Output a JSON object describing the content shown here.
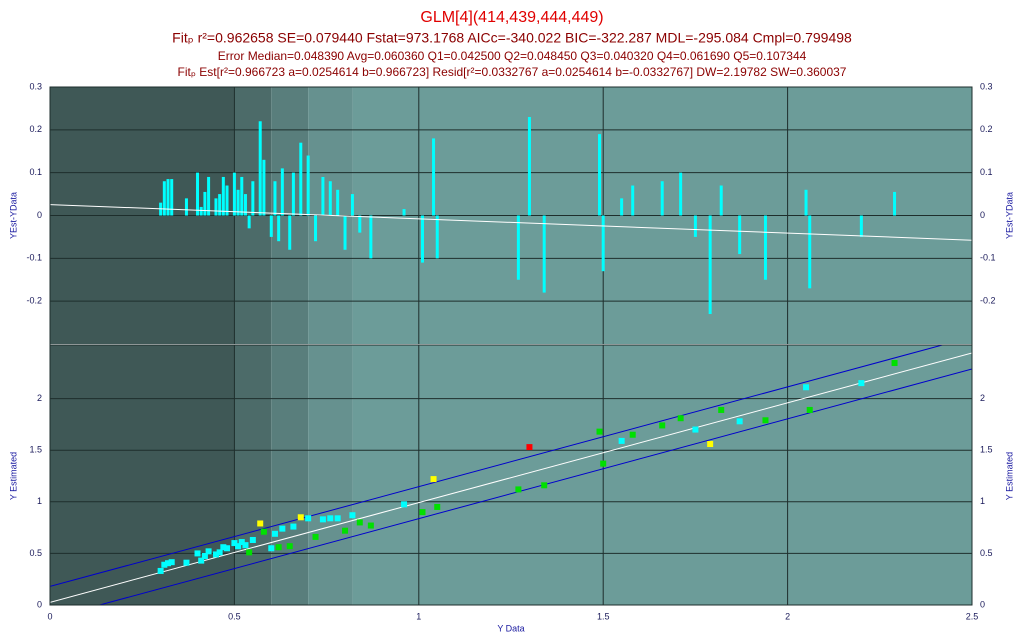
{
  "chart_data": [
    {
      "type": "bar",
      "title": "GLM[4](414,439,444,449)",
      "subtitle": [
        "Fitₚ r²=0.962658 SE=0.079440 Fstat=973.1768 AICc=-340.022 BIC=-322.287 MDL=-295.084 Cmpl=0.799498",
        "Error Median=0.048390 Avg=0.060360 Q1=0.042500 Q2=0.048450 Q3=0.040320 Q4=0.061690 Q5=0.107344",
        "Fitₚ Est[r²=0.966723 a=0.0254614 b=0.966723] Resid[r²=0.0332767 a=0.0254614 b=-0.0332767] DW=2.19782 SW=0.360037"
      ],
      "ylabel": "YEst-YData",
      "x": [
        0.3,
        0.31,
        0.32,
        0.33,
        0.37,
        0.4,
        0.41,
        0.42,
        0.43,
        0.45,
        0.46,
        0.47,
        0.48,
        0.5,
        0.51,
        0.52,
        0.53,
        0.54,
        0.55,
        0.57,
        0.58,
        0.6,
        0.61,
        0.62,
        0.63,
        0.65,
        0.66,
        0.68,
        0.7,
        0.72,
        0.74,
        0.76,
        0.78,
        0.8,
        0.82,
        0.84,
        0.87,
        0.96,
        1.01,
        1.04,
        1.05,
        1.27,
        1.3,
        1.34,
        1.49,
        1.5,
        1.55,
        1.58,
        1.66,
        1.71,
        1.75,
        1.79,
        1.82,
        1.87,
        1.94,
        2.05,
        2.06,
        2.2,
        2.29
      ],
      "values": [
        0.03,
        0.08,
        0.085,
        0.085,
        0.04,
        0.1,
        0.02,
        0.055,
        0.09,
        0.04,
        0.05,
        0.09,
        0.07,
        0.1,
        0.06,
        0.09,
        0.05,
        -0.03,
        0.08,
        0.22,
        0.13,
        -0.05,
        0.08,
        -0.06,
        0.11,
        -0.08,
        0.1,
        0.17,
        0.14,
        -0.06,
        0.09,
        0.08,
        0.06,
        -0.08,
        0.05,
        -0.04,
        -0.1,
        0.015,
        -0.11,
        0.18,
        -0.1,
        -0.15,
        0.23,
        -0.18,
        0.19,
        -0.13,
        0.04,
        0.07,
        0.08,
        0.1,
        -0.05,
        -0.23,
        0.07,
        -0.09,
        -0.15,
        0.06,
        -0.17,
        -0.05,
        0.055
      ],
      "color": "#00ffff",
      "xlim": [
        0,
        2.5
      ],
      "ylim": [
        -0.3,
        0.3
      ],
      "yticks": [
        -0.2,
        -0.1,
        0,
        0.1,
        0.2,
        0.3
      ],
      "fit_line": {
        "x": [
          0,
          2.5
        ],
        "y": [
          0.0255,
          -0.0577
        ]
      },
      "line_color": "#ffffff",
      "bands": [
        0,
        0.5,
        0.6,
        0.7,
        0.82,
        2.5
      ],
      "band_colors": [
        "#3f5856",
        "#4c6b69",
        "#597e7c",
        "#66918f",
        "#6c9c99"
      ],
      "grid": true
    },
    {
      "type": "scatter",
      "xlabel": "Y Data",
      "ylabel": "Y Estimated",
      "x": [
        0.3,
        0.31,
        0.32,
        0.33,
        0.37,
        0.4,
        0.41,
        0.42,
        0.43,
        0.45,
        0.46,
        0.47,
        0.48,
        0.5,
        0.51,
        0.52,
        0.53,
        0.54,
        0.55,
        0.57,
        0.58,
        0.6,
        0.61,
        0.62,
        0.63,
        0.65,
        0.66,
        0.68,
        0.7,
        0.72,
        0.74,
        0.76,
        0.78,
        0.8,
        0.82,
        0.84,
        0.87,
        0.96,
        1.01,
        1.04,
        1.05,
        1.27,
        1.3,
        1.34,
        1.49,
        1.5,
        1.55,
        1.58,
        1.66,
        1.71,
        1.75,
        1.79,
        1.82,
        1.87,
        1.94,
        2.05,
        2.06,
        2.2,
        2.29
      ],
      "y": [
        0.33,
        0.39,
        0.405,
        0.415,
        0.41,
        0.5,
        0.43,
        0.475,
        0.52,
        0.49,
        0.51,
        0.56,
        0.55,
        0.6,
        0.57,
        0.61,
        0.58,
        0.51,
        0.63,
        0.79,
        0.71,
        0.55,
        0.69,
        0.56,
        0.74,
        0.57,
        0.76,
        0.85,
        0.84,
        0.66,
        0.83,
        0.84,
        0.84,
        0.72,
        0.87,
        0.8,
        0.77,
        0.975,
        0.9,
        1.22,
        0.95,
        1.12,
        1.53,
        1.16,
        1.68,
        1.37,
        1.59,
        1.65,
        1.74,
        1.81,
        1.7,
        1.56,
        1.89,
        1.78,
        1.79,
        2.11,
        1.89,
        2.15,
        2.345
      ],
      "colors": [
        "#00ffff",
        "#00ffff",
        "#00ffff",
        "#00ffff",
        "#00ffff",
        "#00ffff",
        "#00ffff",
        "#00ffff",
        "#00ffff",
        "#00ffff",
        "#00ffff",
        "#00ffff",
        "#00ffff",
        "#00ffff",
        "#00ffff",
        "#00ffff",
        "#00ffff",
        "#00e000",
        "#00ffff",
        "#ffff00",
        "#00e000",
        "#00ffff",
        "#00ffff",
        "#00e000",
        "#00ffff",
        "#00e000",
        "#00ffff",
        "#ffff00",
        "#00ffff",
        "#00e000",
        "#00ffff",
        "#00ffff",
        "#00ffff",
        "#00e000",
        "#00ffff",
        "#00e000",
        "#00e000",
        "#00ffff",
        "#00e000",
        "#ffff00",
        "#00e000",
        "#00e000",
        "#ff0000",
        "#00e000",
        "#00e000",
        "#00e000",
        "#00ffff",
        "#00e000",
        "#00e000",
        "#00e000",
        "#00ffff",
        "#ffff00",
        "#00e000",
        "#00ffff",
        "#00e000",
        "#00ffff",
        "#00e000",
        "#00ffff",
        "#00e000"
      ],
      "xlim": [
        0,
        2.5
      ],
      "xticks": [
        0,
        0.5,
        1,
        1.5,
        2,
        2.5
      ],
      "ylim": [
        0,
        2.5
      ],
      "yticks": [
        0,
        0.5,
        1,
        1.5,
        2
      ],
      "fit_line": {
        "x": [
          0,
          2.5
        ],
        "y": [
          0.0255,
          2.4423
        ]
      },
      "upper_limit": {
        "x": [
          0,
          2.5
        ],
        "y": [
          0.18,
          2.597
        ]
      },
      "lower_limit": {
        "x": [
          0,
          2.5
        ],
        "y": [
          -0.13,
          2.287
        ]
      },
      "line_color": "#ffffff",
      "limit_color": "#0000cc",
      "grid": true
    }
  ]
}
